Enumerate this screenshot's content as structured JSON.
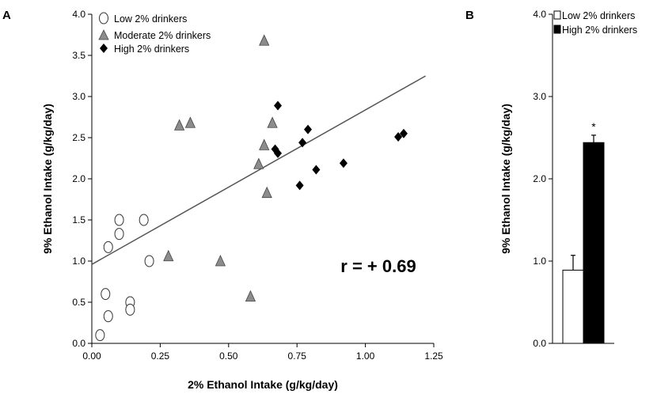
{
  "chart_data": [
    {
      "type": "scatter",
      "panel_label": "A",
      "xlabel": "2% Ethanol Intake (g/kg/day)",
      "ylabel": "9% Ethanol Intake (g/kg/day)",
      "xlim": [
        0,
        1.25
      ],
      "ylim": [
        0,
        4.0
      ],
      "x_ticks": [
        "0.00",
        "0.25",
        "0.50",
        "0.75",
        "1.00",
        "1.25"
      ],
      "y_ticks": [
        "0.0",
        "0.5",
        "1.0",
        "1.5",
        "2.0",
        "2.5",
        "3.0",
        "3.5",
        "4.0"
      ],
      "grid": false,
      "legend_position": "top-left",
      "annotation": "r = + 0.69",
      "trendline": {
        "x": [
          0,
          1.22
        ],
        "y": [
          0.96,
          3.25
        ]
      },
      "series": [
        {
          "name": "Low 2% drinkers",
          "marker": "circle-open",
          "points": [
            [
              0.1,
              1.5
            ],
            [
              0.19,
              1.5
            ],
            [
              0.1,
              1.33
            ],
            [
              0.06,
              1.17
            ],
            [
              0.21,
              1.0
            ],
            [
              0.05,
              0.6
            ],
            [
              0.14,
              0.5
            ],
            [
              0.14,
              0.41
            ],
            [
              0.06,
              0.33
            ],
            [
              0.03,
              0.1
            ]
          ]
        },
        {
          "name": "Moderate 2% drinkers",
          "marker": "triangle-gray",
          "points": [
            [
              0.63,
              3.68
            ],
            [
              0.32,
              2.65
            ],
            [
              0.36,
              2.68
            ],
            [
              0.66,
              2.68
            ],
            [
              0.63,
              2.41
            ],
            [
              0.61,
              2.18
            ],
            [
              0.64,
              1.83
            ],
            [
              0.28,
              1.06
            ],
            [
              0.47,
              1.0
            ],
            [
              0.58,
              0.57
            ]
          ]
        },
        {
          "name": "High 2% drinkers",
          "marker": "diamond-black",
          "points": [
            [
              0.68,
              2.89
            ],
            [
              0.79,
              2.6
            ],
            [
              0.77,
              2.44
            ],
            [
              0.67,
              2.36
            ],
            [
              0.68,
              2.31
            ],
            [
              0.82,
              2.11
            ],
            [
              0.92,
              2.19
            ],
            [
              0.76,
              1.92
            ],
            [
              1.12,
              2.51
            ],
            [
              1.14,
              2.55
            ]
          ]
        }
      ]
    },
    {
      "type": "bar",
      "panel_label": "B",
      "ylabel": "9% Ethanol Intake (g/kg/day)",
      "ylim": [
        0,
        4.0
      ],
      "y_ticks": [
        "0.0",
        "1.0",
        "2.0",
        "3.0",
        "4.0"
      ],
      "categories": [
        "Low 2% drinkers",
        "High 2% drinkers"
      ],
      "values": [
        0.89,
        2.44
      ],
      "errors": [
        0.18,
        0.09
      ],
      "colors": [
        "#ffffff",
        "#000000"
      ],
      "legend_position": "top-left",
      "significance_marker": "*"
    }
  ]
}
